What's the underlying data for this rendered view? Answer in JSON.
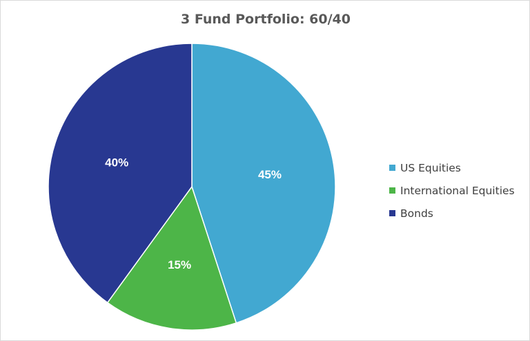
{
  "chart_data": {
    "type": "pie",
    "title": "3 Fund Portfolio: 60/40",
    "slices": [
      {
        "label": "US Equities",
        "value": 45,
        "data_label": "45%",
        "color": "#42A8D1"
      },
      {
        "label": "International Equities",
        "value": 15,
        "data_label": "15%",
        "color": "#4DB548"
      },
      {
        "label": "Bonds",
        "value": 40,
        "data_label": "40%",
        "color": "#283891"
      }
    ],
    "start_angle": "12 o'clock",
    "direction": "clockwise",
    "legend_position": "right"
  }
}
